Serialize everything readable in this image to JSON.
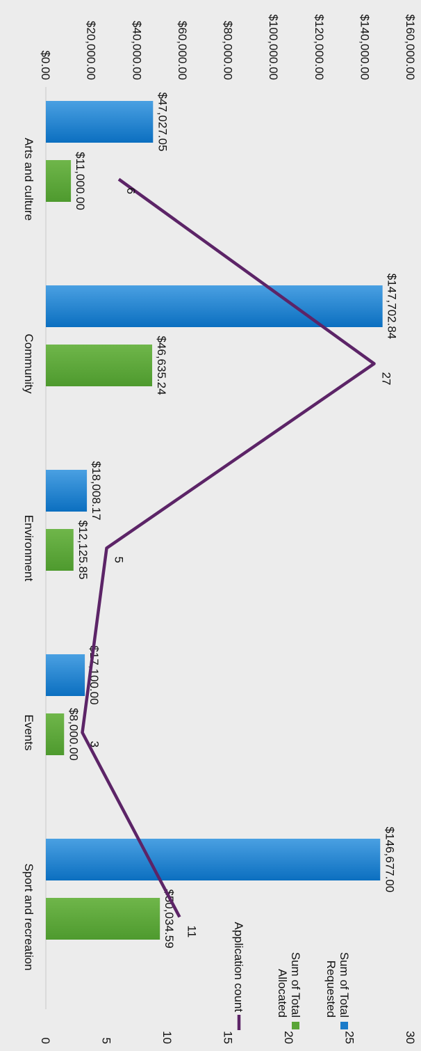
{
  "chart_data": {
    "type": "bar",
    "orientation": "rotated-90-clockwise",
    "categories": [
      "Arts and culture",
      "Community",
      "Environment",
      "Events",
      "Sport and recreation"
    ],
    "series": [
      {
        "name": "Sum of Total Requested",
        "kind": "bar",
        "axis": "primary",
        "color": "#1a7bc9",
        "values": [
          47027.05,
          147702.84,
          18008.17,
          17100.0,
          146677.0
        ],
        "labels": [
          "$47,027.05",
          "$147,702.84",
          "$18,008.17",
          "$17,100.00",
          "$146,677.00"
        ]
      },
      {
        "name": "Sum of Total Allocated",
        "kind": "bar",
        "axis": "primary",
        "color": "#5aa537",
        "values": [
          11000.0,
          46635.24,
          12125.85,
          8000.0,
          50034.59
        ],
        "labels": [
          "$11,000.00",
          "$46,635.24",
          "$12,125.85",
          "$8,000.00",
          "$50,034.59"
        ]
      },
      {
        "name": "Application count",
        "kind": "line",
        "axis": "secondary",
        "color": "#5c2467",
        "values": [
          6,
          27,
          5,
          3,
          11
        ],
        "labels": [
          "6",
          "27",
          "5",
          "3",
          "11"
        ]
      }
    ],
    "primary_axis": {
      "ylim": [
        0,
        160000
      ],
      "ticks": [
        "$0.00",
        "$20,000.00",
        "$40,000.00",
        "$60,000.00",
        "$80,000.00",
        "$100,000.00",
        "$120,000.00",
        "$140,000.00",
        "$160,000.00"
      ]
    },
    "secondary_axis": {
      "ylim": [
        0,
        30
      ],
      "ticks": [
        "0",
        "5",
        "10",
        "15",
        "20",
        "25",
        "30"
      ]
    },
    "legend": {
      "position": "right",
      "items": [
        {
          "label": [
            "Sum of Total",
            "Requested"
          ],
          "color": "#1a7bc9",
          "shape": "square"
        },
        {
          "label": [
            "Sum of Total",
            "Allocated"
          ],
          "color": "#5aa537",
          "shape": "square"
        },
        {
          "label": [
            "Application count"
          ],
          "color": "#5c2467",
          "shape": "line"
        }
      ]
    },
    "grid": false
  }
}
